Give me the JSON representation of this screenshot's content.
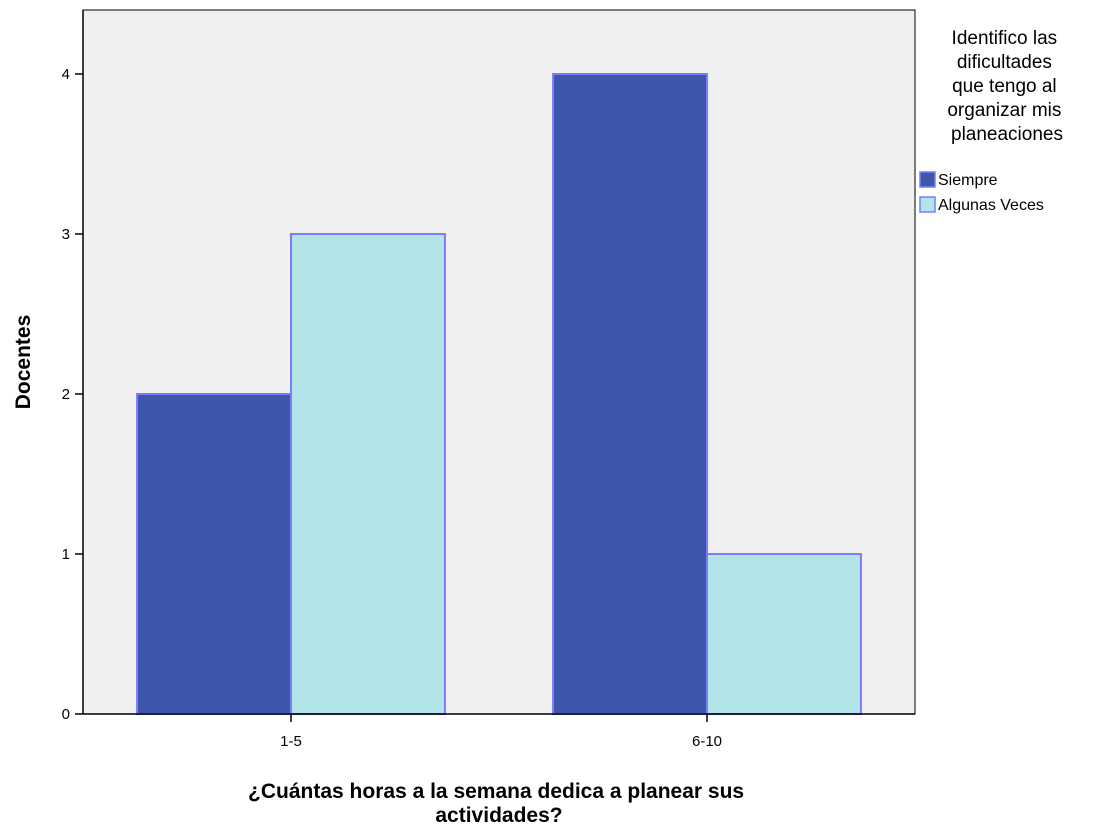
{
  "chart_data": {
    "type": "bar",
    "categories": [
      "1-5",
      "6-10"
    ],
    "series": [
      {
        "name": "Siempre",
        "values": [
          2,
          4
        ],
        "color": "#3f57ab",
        "stroke": "#7b7bff"
      },
      {
        "name": "Algunas Veces",
        "values": [
          3,
          1
        ],
        "color": "#b3e5e8",
        "stroke": "#7b7bff"
      }
    ],
    "xlabel": "¿Cuántas horas a la semana dedica a planear sus actividades?",
    "xlabel_lines": [
      "¿Cuántas horas a la semana dedica a planear sus",
      "actividades?"
    ],
    "ylabel": "Docentes",
    "ylim": [
      0,
      4.4
    ],
    "yticks": [
      0,
      1,
      2,
      3,
      4
    ],
    "grid": false,
    "plot_background": "#f0f0f0",
    "legend": {
      "placement": "right",
      "title_lines": [
        "Identifico las",
        "dificultades",
        "que tengo al",
        "organizar mis",
        "planeaciones"
      ]
    }
  }
}
